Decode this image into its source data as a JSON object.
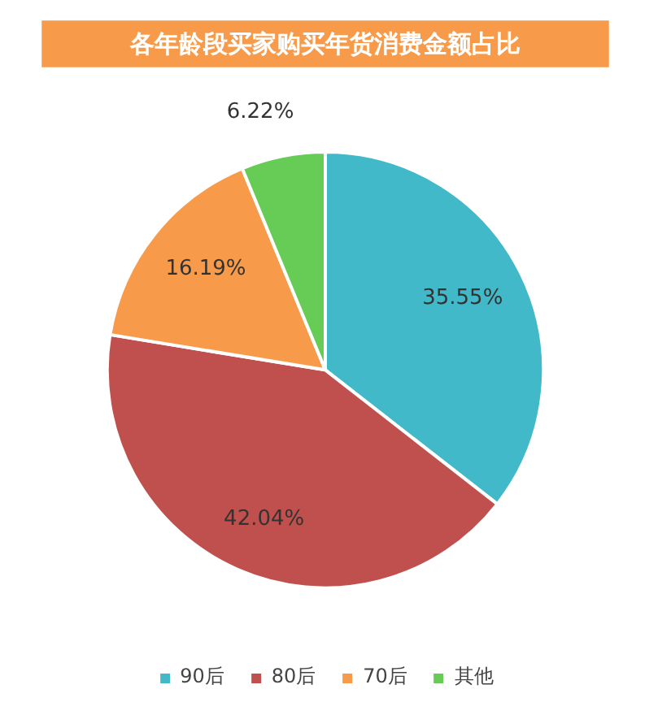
{
  "chart_data": {
    "type": "pie",
    "title": "各年龄段买家购买年货消费金额占比",
    "categories": [
      "90后",
      "80后",
      "70后",
      "其他"
    ],
    "values": [
      35.55,
      42.04,
      16.19,
      6.22
    ],
    "colors": [
      "#41b9c9",
      "#c0504d",
      "#f79b4a",
      "#66cc55"
    ],
    "value_labels": [
      "35.55%",
      "42.04%",
      "16.19%",
      "6.22%"
    ],
    "legend": "bottom"
  }
}
